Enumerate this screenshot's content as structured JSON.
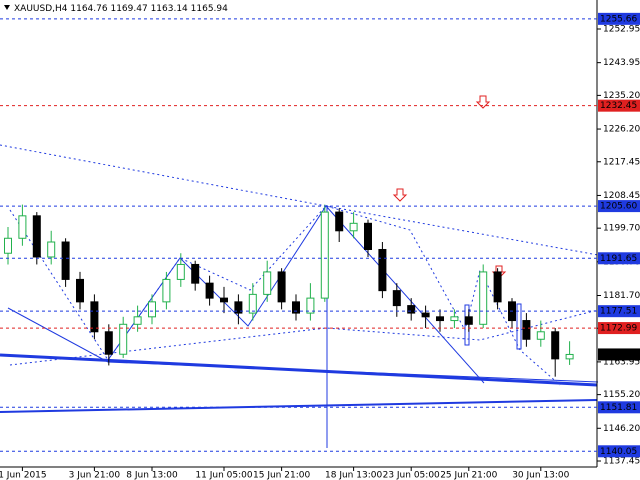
{
  "chart_data": {
    "type": "candlestick",
    "title": "XAUUSD,H4",
    "categories": [
      null,
      "1 Jun 2015",
      null,
      null,
      null,
      null,
      "3 Jun 21:00",
      null,
      null,
      null,
      "8 Jun 13:00",
      null,
      null,
      null,
      null,
      "11 Jun 05:00",
      null,
      null,
      null,
      "15 Jun 21:00",
      null,
      null,
      null,
      null,
      "18 Jun 13:00",
      null,
      null,
      null,
      "23 Jun 05:00",
      null,
      null,
      null,
      "25 Jun 21:00",
      null,
      null,
      null,
      null,
      "30 Jun 13:00",
      null,
      null
    ],
    "open": [
      1193,
      1197,
      1203,
      1192,
      1196,
      1186,
      1180,
      1172,
      1166,
      1174,
      1176,
      1180,
      1186,
      1190,
      1185,
      1181,
      1180,
      1177,
      1182,
      1188,
      1180,
      1177,
      1181,
      1204,
      1199,
      1201,
      1194,
      1183,
      1179,
      1177,
      1176,
      1175,
      1176,
      1174,
      1188,
      1180,
      1175,
      1170,
      1172,
      1164.76
    ],
    "high": [
      1200,
      1206,
      1204,
      1199,
      1197,
      1188,
      1182,
      1174,
      1176,
      1179,
      1182,
      1188,
      1193,
      1191,
      1187,
      1184,
      1182,
      1185,
      1191,
      1189,
      1182,
      1185,
      1206,
      1205,
      1204,
      1202,
      1196,
      1185,
      1181,
      1179,
      1178,
      1178,
      1178,
      1190,
      1189,
      1181,
      1177,
      1175,
      1173,
      1169.47
    ],
    "low": [
      1190,
      1195,
      1190,
      1190,
      1184,
      1178,
      1170,
      1163,
      1165,
      1172,
      1174,
      1178,
      1184,
      1183,
      1179,
      1177,
      1174,
      1175,
      1180,
      1178,
      1175,
      1175,
      1180,
      1196,
      1197,
      1192,
      1181,
      1176,
      1175,
      1173,
      1172,
      1173,
      1172,
      1173,
      1178,
      1173,
      1168,
      1168,
      1160,
      1163.14
    ],
    "close": [
      1197,
      1203,
      1192,
      1196,
      1186,
      1180,
      1172,
      1166,
      1174,
      1176,
      1180,
      1186,
      1190,
      1185,
      1181,
      1180,
      1177,
      1182,
      1188,
      1180,
      1177,
      1181,
      1204,
      1199,
      1201,
      1194,
      1183,
      1179,
      1177,
      1176,
      1175,
      1176,
      1174,
      1188,
      1180,
      1175,
      1170,
      1172,
      1164.76,
      1165.94
    ],
    "up_color": "#22b14c",
    "down_color": "#000000",
    "ylim": [
      1135.85,
      1260.7
    ],
    "yticks": [
      1252.95,
      1243.95,
      {
        "value": 1235.2,
        "label": "1235.20"
      },
      {
        "value": 1226.2,
        "label": "1226.20"
      },
      1217.45,
      1208.45,
      {
        "value": 1199.7,
        "label": "1199.70"
      },
      {
        "value": 1190.7,
        "label": "1190.70"
      },
      {
        "value": 1181.7,
        "label": "1181.70"
      },
      1172.95,
      1163.95,
      {
        "value": 1155.2,
        "label": "1155.20"
      },
      {
        "value": 1146.2,
        "label": "1146.20"
      },
      1137.45
    ],
    "levels": [
      {
        "value": 1255.66,
        "color": "#1f3ae0"
      },
      {
        "value": 1232.45,
        "color": "#e02020"
      },
      {
        "value": 1205.6,
        "label": "1205.60",
        "color": "#1f3ae0"
      },
      {
        "value": 1191.65,
        "color": "#1f3ae0"
      },
      {
        "value": 1177.51,
        "color": "#1f3ae0"
      },
      {
        "value": 1172.99,
        "color": "#e02020"
      },
      {
        "value": 1151.81,
        "color": "#1f3ae0"
      },
      {
        "value": 1140.05,
        "color": "#1f3ae0"
      }
    ]
  }
}
